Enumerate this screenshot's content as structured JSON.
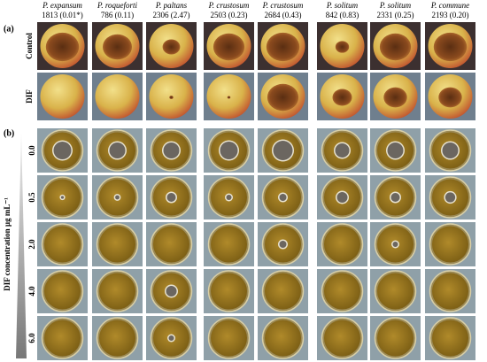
{
  "panel_a_label": "(a)",
  "panel_b_label": "(b)",
  "columns": [
    {
      "species": "P. expansum",
      "code": "1813 (0.01*)"
    },
    {
      "species": "P. roqueforti",
      "code": "786 (0.11)"
    },
    {
      "species": "P. paltans",
      "code": "2306 (2.47)"
    },
    {
      "species": "P. crustosum",
      "code": "2503 (0.23)"
    },
    {
      "species": "P. crustosum",
      "code": "2684 (0.43)"
    },
    {
      "species": "P. solitum",
      "code": "842 (0.83)"
    },
    {
      "species": "P. solitum",
      "code": "2331 (0.25)"
    },
    {
      "species": "P. commune",
      "code": "2193 (0.20)"
    }
  ],
  "apple_rows": [
    "Control",
    "DIF"
  ],
  "concentration_axis_label": "DIF concentration µg mL⁻¹",
  "concentrations": [
    "0.0",
    "0.5",
    "2.0",
    "4.0",
    "6.0"
  ]
}
